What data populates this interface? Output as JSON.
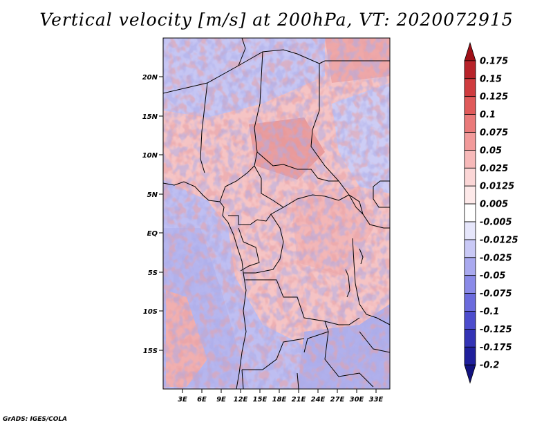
{
  "title": "Vertical velocity [m/s] at 200hPa, VT: 2020072915",
  "credit": "GrADS: IGES/COLA",
  "lat_labels": [
    "20N",
    "15N",
    "10N",
    "5N",
    "EQ",
    "5S",
    "10S",
    "15S"
  ],
  "lon_labels": [
    "3E",
    "6E",
    "9E",
    "12E",
    "15E",
    "18E",
    "21E",
    "24E",
    "27E",
    "30E",
    "33E"
  ],
  "colorbar": {
    "labels": [
      "0.175",
      "0.15",
      "0.125",
      "0.1",
      "0.075",
      "0.05",
      "0.025",
      "0.0125",
      "0.005",
      "-0.005",
      "-0.0125",
      "-0.025",
      "-0.05",
      "-0.075",
      "-0.1",
      "-0.125",
      "-0.175",
      "-0.2"
    ],
    "colors": [
      "#a01018",
      "#b8232a",
      "#cf3c3f",
      "#e05a5a",
      "#ea7a7a",
      "#f29a9a",
      "#f7b9b9",
      "#fbd6d6",
      "#fde9e9",
      "#ffffff",
      "#e6e6fb",
      "#c9c9f6",
      "#a9a9ef",
      "#8a8ae8",
      "#6b6bdd",
      "#4c4ccd",
      "#3333b5",
      "#1f1f9c",
      "#12127f"
    ]
  }
}
